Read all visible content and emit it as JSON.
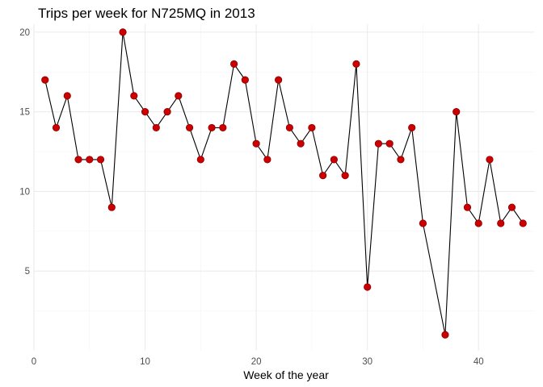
{
  "chart_data": {
    "type": "line",
    "title": "Trips per week for N725MQ in 2013",
    "xlabel": "Week of the year",
    "ylabel": "",
    "xlim": [
      0.0,
      45.0
    ],
    "ylim": [
      0.0,
      20.5
    ],
    "x_ticks": [
      0,
      10,
      20,
      30,
      40
    ],
    "y_ticks": [
      5,
      10,
      15,
      20
    ],
    "grid": true,
    "colors": {
      "line": "#000000",
      "point": "#cc0000"
    },
    "series": [
      {
        "x": [
          1,
          2,
          3,
          4,
          5,
          6,
          7,
          8,
          9,
          10,
          11,
          12,
          13,
          14,
          15,
          16,
          17,
          18,
          19,
          20,
          21,
          22,
          23,
          24,
          25,
          26,
          27,
          28,
          29,
          30,
          31,
          32,
          33,
          34,
          35,
          37,
          38,
          39,
          40,
          41,
          42,
          43,
          44
        ],
        "y": [
          17,
          14,
          16,
          12,
          12,
          12,
          9,
          20,
          16,
          15,
          14,
          15,
          16,
          14,
          12,
          14,
          14,
          18,
          17,
          13,
          12,
          17,
          14,
          13,
          14,
          11,
          12,
          11,
          18,
          4,
          13,
          13,
          12,
          14,
          8,
          1,
          15,
          9,
          8,
          12,
          8,
          9,
          8
        ]
      }
    ]
  }
}
